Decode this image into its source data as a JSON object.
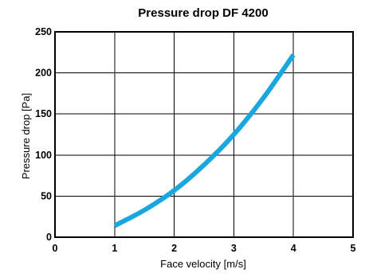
{
  "chart_data": {
    "type": "line",
    "title": "Pressure drop DF 4200",
    "xlabel": "Face velocity [m/s]",
    "ylabel": "Pressure drop  [Pa]",
    "xlim": [
      0,
      5
    ],
    "ylim": [
      0,
      250
    ],
    "xticks": [
      0,
      1,
      2,
      3,
      4,
      5
    ],
    "yticks": [
      0,
      50,
      100,
      150,
      200,
      250
    ],
    "grid": true,
    "line_color": "#1aa7e0",
    "series": [
      {
        "x": [
          1.0,
          1.5,
          2.0,
          2.5,
          3.0,
          3.5,
          4.0
        ],
        "y": [
          14,
          33,
          57,
          88,
          125,
          170,
          222
        ]
      }
    ]
  }
}
